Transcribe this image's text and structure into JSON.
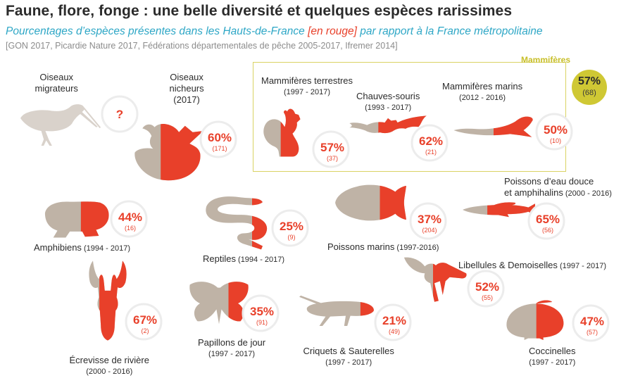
{
  "title": "Faune, flore, fonge : une belle diversité et quelques espèces rarissimes",
  "subtitle": {
    "before": "Pourcentages d’espèces présentes dans les Hauts-de-France ",
    "highlight": "[en rouge]",
    "after": " par rapport à la France métropolitaine"
  },
  "source": "[GON 2017, Picardie Nature 2017, Fédérations départementales de pêche 2005-2017, Ifremer 2014]",
  "colors": {
    "red": "#e8402a",
    "grey": "#bfb3a6",
    "light_grey": "#d9d2cb",
    "accent": "#cfc834",
    "subtitle_blue": "#2ea7c6"
  },
  "mammal_group": {
    "label": "Mammifères",
    "percent": "57%",
    "count": "(68)",
    "value": 57
  },
  "chart_data": {
    "type": "pictogram",
    "title": "Faune, flore, fonge : une belle diversité et quelques espèces rarissimes",
    "unit": "% of species of metropolitan France present in Hauts-de-France",
    "items": [
      {
        "id": "oiseaux-migrateurs",
        "name_lines": [
          "Oiseaux",
          "migrateurs"
        ],
        "period": "",
        "value": null,
        "percent": "?",
        "count": "",
        "icon": "wader-bird-icon"
      },
      {
        "id": "oiseaux-nicheurs",
        "name_lines": [
          "Oiseaux",
          "nicheurs"
        ],
        "period": "(2017)",
        "value": 60,
        "percent": "60%",
        "count": "(171)",
        "icon": "nesting-bird-icon"
      },
      {
        "id": "mammiferes-terrestres",
        "name_lines": [
          "Mammifères terrestres"
        ],
        "period": "(1997 - 2017)",
        "value": 57,
        "percent": "57%",
        "count": "(37)",
        "icon": "squirrel-icon"
      },
      {
        "id": "chauves-souris",
        "name_lines": [
          "Chauves-souris"
        ],
        "period": "(1993 - 2017)",
        "value": 62,
        "percent": "62%",
        "count": "(21)",
        "icon": "bat-icon"
      },
      {
        "id": "mammiferes-marins",
        "name_lines": [
          "Mammifères marins"
        ],
        "period": "(2012 - 2016)",
        "value": 50,
        "percent": "50%",
        "count": "(10)",
        "icon": "seal-icon"
      },
      {
        "id": "amphibiens",
        "name_lines": [
          "Amphibiens"
        ],
        "period": "(1994 - 2017)",
        "value": 44,
        "percent": "44%",
        "count": "(16)",
        "icon": "toad-icon"
      },
      {
        "id": "reptiles",
        "name_lines": [
          "Reptiles"
        ],
        "period": "(1994 - 2017)",
        "value": 25,
        "percent": "25%",
        "count": "(9)",
        "icon": "snake-icon"
      },
      {
        "id": "poissons-marins",
        "name_lines": [
          "Poissons marins"
        ],
        "period": "(1997-2016)",
        "value": 37,
        "percent": "37%",
        "count": "(204)",
        "icon": "flatfish-icon"
      },
      {
        "id": "poissons-eau-douce",
        "name_lines": [
          "Poissons d’eau douce",
          "et amphihalins"
        ],
        "period": "(2000 - 2016)",
        "value": 65,
        "percent": "65%",
        "count": "(56)",
        "icon": "fish-icon"
      },
      {
        "id": "libellules",
        "name_lines": [
          "Libellules & Demoiselles"
        ],
        "period": "(1997 - 2017)",
        "value": 52,
        "percent": "52%",
        "count": "(55)",
        "icon": "dragonfly-icon"
      },
      {
        "id": "ecrevisse",
        "name_lines": [
          "Écrevisse de rivière"
        ],
        "period": "(2000 - 2016)",
        "value": 67,
        "percent": "67%",
        "count": "(2)",
        "icon": "crayfish-icon"
      },
      {
        "id": "papillons",
        "name_lines": [
          "Papillons de jour"
        ],
        "period": "(1997 - 2017)",
        "value": 35,
        "percent": "35%",
        "count": "(91)",
        "icon": "butterfly-icon"
      },
      {
        "id": "criquets",
        "name_lines": [
          "Criquets & Sauterelles"
        ],
        "period": "(1997 - 2017)",
        "value": 21,
        "percent": "21%",
        "count": "(49)",
        "icon": "grasshopper-icon"
      },
      {
        "id": "coccinelles",
        "name_lines": [
          "Coccinelles"
        ],
        "period": "(1997 - 2017)",
        "value": 47,
        "percent": "47%",
        "count": "(57)",
        "icon": "ladybird-icon"
      }
    ]
  }
}
